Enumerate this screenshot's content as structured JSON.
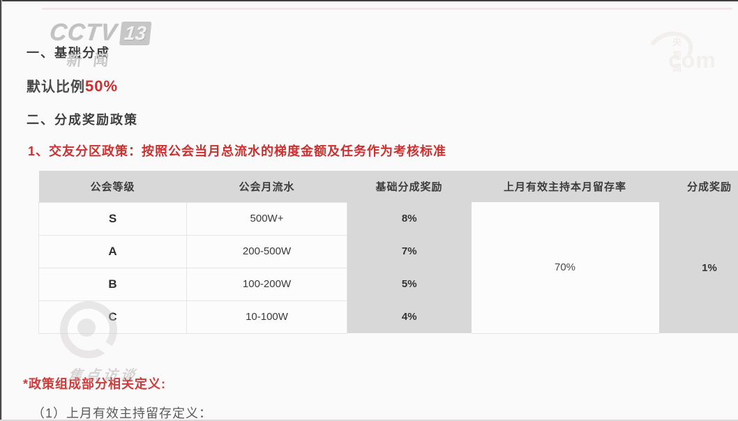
{
  "page": {
    "section1_title": "一、基础分成",
    "default_ratio_label": "默认比例",
    "default_ratio_value": "50%",
    "section2_title": "二、分成奖励政策",
    "policy_heading": "1、交友分区政策：按照公会当月总流水的梯度金额及任务作为考核标准",
    "footnote_title": "*政策组成部分相关定义:",
    "definition_item": "（1）上月有效主持留存定义："
  },
  "table": {
    "headers": [
      "公会等级",
      "公会月流水",
      "基础分成奖励",
      "上月有效主持本月留存率",
      "分成奖励"
    ],
    "rows": [
      {
        "level": "S",
        "monthly_flow": "500W+",
        "base_reward": "8%"
      },
      {
        "level": "A",
        "monthly_flow": "200-500W",
        "base_reward": "7%"
      },
      {
        "level": "B",
        "monthly_flow": "100-200W",
        "base_reward": "5%"
      },
      {
        "level": "C",
        "monthly_flow": "10-100W",
        "base_reward": "4%"
      }
    ],
    "retention_rate": "70%",
    "share_reward": "1%"
  },
  "watermarks": {
    "cctv13": {
      "brand": "CCTV",
      "channel": "13",
      "caption": "新闻"
    },
    "cctv_com": {
      "mini": "央视网",
      "text": "com"
    },
    "jiaodian": {
      "label": "焦点访谈"
    }
  },
  "colors": {
    "accent_red": "#ce3030",
    "header_gray": "#d8d8d8",
    "page_bg": "#fbfafb",
    "text_dark": "#3e3e3e"
  }
}
